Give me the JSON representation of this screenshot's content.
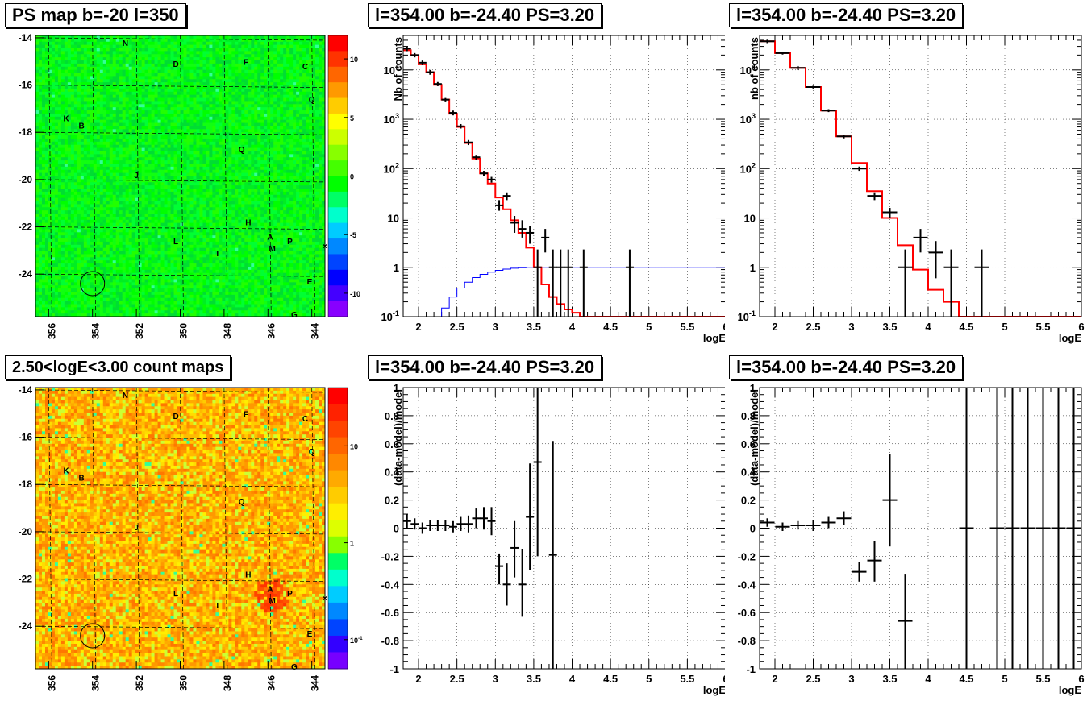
{
  "chart_data": [
    {
      "id": "psmap",
      "type": "heatmap",
      "title": "PS map b=-20 l=350",
      "x_ticks": [
        "356",
        "354",
        "352",
        "350",
        "348",
        "346",
        "344"
      ],
      "x_tick_values": [
        356,
        354,
        352,
        350,
        348,
        346,
        344
      ],
      "xlim": [
        356.6,
        343.4
      ],
      "y_ticks": [
        "-14",
        "-16",
        "-18",
        "-20",
        "-22",
        "-24"
      ],
      "y_tick_values": [
        -14,
        -16,
        -18,
        -20,
        -22,
        -24
      ],
      "ylim": [
        -25.8,
        -13.9
      ],
      "color_scale": {
        "min": -12,
        "max": 12,
        "ticks": [
          "10",
          "5",
          "0",
          "-5",
          "-10"
        ],
        "tick_values": [
          10,
          5,
          0,
          -5,
          -10
        ]
      },
      "sources": [
        {
          "label": "N",
          "l": 352.5,
          "b": -14.2
        },
        {
          "label": "D",
          "l": 350.2,
          "b": -15.1
        },
        {
          "label": "F",
          "l": 347.0,
          "b": -15.0
        },
        {
          "label": "C",
          "l": 344.3,
          "b": -15.2
        },
        {
          "label": "Q",
          "l": 344.0,
          "b": -16.6
        },
        {
          "label": "K",
          "l": 355.2,
          "b": -17.4
        },
        {
          "label": "B",
          "l": 354.5,
          "b": -17.7
        },
        {
          "label": "Q",
          "l": 347.2,
          "b": -18.7
        },
        {
          "label": "J",
          "l": 352.0,
          "b": -19.8
        },
        {
          "label": "H",
          "l": 346.9,
          "b": -21.8
        },
        {
          "label": "A",
          "l": 345.9,
          "b": -22.4
        },
        {
          "label": "P",
          "l": 345.0,
          "b": -22.6
        },
        {
          "label": "M",
          "l": 345.8,
          "b": -22.9
        },
        {
          "label": "L",
          "l": 350.2,
          "b": -22.6
        },
        {
          "label": "I",
          "l": 348.3,
          "b": -23.1
        },
        {
          "label": "E",
          "l": 344.1,
          "b": -24.3
        },
        {
          "label": "G",
          "l": 344.8,
          "b": -25.7
        }
      ],
      "circle": {
        "l": 354.0,
        "b": -24.4
      }
    },
    {
      "id": "spec1",
      "type": "line",
      "title": "l=354.00 b=-24.40 PS=3.20",
      "xlabel": "logE",
      "ylabel": "Nb of counts",
      "xlim": [
        1.8,
        6.0
      ],
      "ylim": [
        0.1,
        50000
      ],
      "yscale": "log",
      "x_ticks": [
        "2",
        "2.5",
        "3",
        "3.5",
        "4",
        "4.5",
        "5",
        "5.5",
        "6"
      ],
      "x_tick_values": [
        2,
        2.5,
        3,
        3.5,
        4,
        4.5,
        5,
        5.5,
        6
      ],
      "y_ticks": [
        "10^-1",
        "1",
        "10",
        "10^2",
        "10^3",
        "10^4"
      ],
      "y_tick_values": [
        0.1,
        1,
        10,
        100,
        1000,
        10000
      ],
      "grid": true,
      "model_step": {
        "edges": [
          1.8,
          1.9,
          2.0,
          2.1,
          2.2,
          2.3,
          2.4,
          2.5,
          2.6,
          2.7,
          2.8,
          2.9,
          3.0,
          3.1,
          3.2,
          3.3,
          3.4,
          3.5,
          3.6,
          3.7,
          3.8,
          3.9,
          4.0,
          4.1,
          4.2,
          4.3,
          4.4,
          6.0
        ],
        "values": [
          25000,
          20000,
          13000,
          9000,
          5000,
          2500,
          1300,
          700,
          330,
          160,
          80,
          50,
          26,
          15,
          9,
          5,
          2.5,
          1.0,
          0.45,
          0.25,
          0.18,
          0.14,
          0.12,
          0.1,
          0.1,
          0.1,
          0.1
        ],
        "color": "#ff0000"
      },
      "efficiency_step": {
        "edges": [
          2.2,
          2.3,
          2.4,
          2.5,
          2.6,
          2.7,
          2.8,
          2.9,
          3.0,
          3.1,
          3.2,
          3.3,
          3.4,
          3.5,
          3.6,
          6.0
        ],
        "values": [
          0.1,
          0.15,
          0.25,
          0.38,
          0.5,
          0.62,
          0.72,
          0.8,
          0.87,
          0.92,
          0.96,
          0.98,
          1.0,
          1.0,
          1.0
        ],
        "color": "#0000ff"
      },
      "points": [
        {
          "x": 1.85,
          "y": 27000,
          "lo": 24000,
          "hi": 30000
        },
        {
          "x": 1.95,
          "y": 20000,
          "lo": 18000,
          "hi": 22000
        },
        {
          "x": 2.05,
          "y": 14000,
          "lo": 12500,
          "hi": 15500
        },
        {
          "x": 2.15,
          "y": 9000,
          "lo": 8000,
          "hi": 10000
        },
        {
          "x": 2.25,
          "y": 5200,
          "lo": 4700,
          "hi": 5700
        },
        {
          "x": 2.35,
          "y": 2500,
          "lo": 2300,
          "hi": 2700
        },
        {
          "x": 2.45,
          "y": 1350,
          "lo": 1200,
          "hi": 1500
        },
        {
          "x": 2.55,
          "y": 720,
          "lo": 650,
          "hi": 800
        },
        {
          "x": 2.65,
          "y": 340,
          "lo": 300,
          "hi": 380
        },
        {
          "x": 2.75,
          "y": 170,
          "lo": 150,
          "hi": 190
        },
        {
          "x": 2.85,
          "y": 80,
          "lo": 70,
          "hi": 90
        },
        {
          "x": 2.95,
          "y": 60,
          "lo": 52,
          "hi": 68
        },
        {
          "x": 3.05,
          "y": 18,
          "lo": 14,
          "hi": 23
        },
        {
          "x": 3.15,
          "y": 28,
          "lo": 23,
          "hi": 33
        },
        {
          "x": 3.25,
          "y": 8,
          "lo": 5,
          "hi": 11
        },
        {
          "x": 3.35,
          "y": 6,
          "lo": 4,
          "hi": 9
        },
        {
          "x": 3.45,
          "y": 5,
          "lo": 3,
          "hi": 7
        },
        {
          "x": 3.55,
          "y": 1,
          "lo": 0.1,
          "hi": 2.3
        },
        {
          "x": 3.65,
          "y": 4,
          "lo": 2,
          "hi": 6
        },
        {
          "x": 3.75,
          "y": 1,
          "lo": 0.1,
          "hi": 2.3
        },
        {
          "x": 3.85,
          "y": 1,
          "lo": 0.1,
          "hi": 2.3
        },
        {
          "x": 3.95,
          "y": 1,
          "lo": 0.1,
          "hi": 2.3
        },
        {
          "x": 4.15,
          "y": 1,
          "lo": 0.1,
          "hi": 2.3
        },
        {
          "x": 4.75,
          "y": 1,
          "lo": 0.1,
          "hi": 2.3
        }
      ]
    },
    {
      "id": "spec2",
      "type": "line",
      "title": "l=354.00 b=-24.40 PS=3.20",
      "xlabel": "logE",
      "ylabel": "nb of counts",
      "xlim": [
        1.8,
        6.0
      ],
      "ylim": [
        0.1,
        50000
      ],
      "yscale": "log",
      "x_ticks": [
        "2",
        "2.5",
        "3",
        "3.5",
        "4",
        "4.5",
        "5",
        "5.5",
        "6"
      ],
      "x_tick_values": [
        2,
        2.5,
        3,
        3.5,
        4,
        4.5,
        5,
        5.5,
        6
      ],
      "y_ticks": [
        "10^-1",
        "1",
        "10",
        "10^2",
        "10^3",
        "10^4"
      ],
      "y_tick_values": [
        0.1,
        1,
        10,
        100,
        1000,
        10000
      ],
      "grid": true,
      "model_step": {
        "edges": [
          1.8,
          2.0,
          2.2,
          2.4,
          2.6,
          2.8,
          3.0,
          3.2,
          3.4,
          3.6,
          3.8,
          4.0,
          4.2,
          4.4,
          6.0
        ],
        "values": [
          38000,
          22000,
          11000,
          4500,
          1500,
          450,
          130,
          35,
          10,
          2.8,
          0.9,
          0.35,
          0.2,
          0.1
        ],
        "color": "#ff0000"
      },
      "points": [
        {
          "x": 1.9,
          "y": 38000,
          "lo": 35000,
          "hi": 41000
        },
        {
          "x": 2.1,
          "y": 22000,
          "lo": 20500,
          "hi": 23500
        },
        {
          "x": 2.3,
          "y": 11000,
          "lo": 10000,
          "hi": 12000
        },
        {
          "x": 2.5,
          "y": 4500,
          "lo": 4200,
          "hi": 4800
        },
        {
          "x": 2.7,
          "y": 1500,
          "lo": 1400,
          "hi": 1600
        },
        {
          "x": 2.9,
          "y": 450,
          "lo": 410,
          "hi": 490
        },
        {
          "x": 3.1,
          "y": 100,
          "lo": 90,
          "hi": 110
        },
        {
          "x": 3.3,
          "y": 28,
          "lo": 23,
          "hi": 33
        },
        {
          "x": 3.5,
          "y": 13,
          "lo": 10,
          "hi": 16
        },
        {
          "x": 3.7,
          "y": 1,
          "lo": 0.1,
          "hi": 2.3
        },
        {
          "x": 3.9,
          "y": 4,
          "lo": 2,
          "hi": 6
        },
        {
          "x": 4.1,
          "y": 2,
          "lo": 0.6,
          "hi": 3.4
        },
        {
          "x": 4.3,
          "y": 1,
          "lo": 0.1,
          "hi": 2.3
        },
        {
          "x": 4.7,
          "y": 1,
          "lo": 0.1,
          "hi": 2.3
        }
      ]
    },
    {
      "id": "countmap",
      "type": "heatmap",
      "title": "2.50<logE<3.00 count maps",
      "x_ticks": [
        "356",
        "354",
        "352",
        "350",
        "348",
        "346",
        "344"
      ],
      "x_tick_values": [
        356,
        354,
        352,
        350,
        348,
        346,
        344
      ],
      "xlim": [
        356.6,
        343.4
      ],
      "y_ticks": [
        "-14",
        "-16",
        "-18",
        "-20",
        "-22",
        "-24"
      ],
      "y_tick_values": [
        -14,
        -16,
        -18,
        -20,
        -22,
        -24
      ],
      "ylim": [
        -25.8,
        -13.9
      ],
      "color_scale": {
        "scale": "log",
        "min": 0.05,
        "max": 40,
        "ticks": [
          "10",
          "1",
          "10^-1"
        ],
        "tick_values": [
          10,
          1,
          0.1
        ]
      },
      "sources": [
        {
          "label": "N",
          "l": 352.5,
          "b": -14.2
        },
        {
          "label": "D",
          "l": 350.2,
          "b": -15.1
        },
        {
          "label": "F",
          "l": 347.0,
          "b": -15.0
        },
        {
          "label": "C",
          "l": 344.3,
          "b": -15.2
        },
        {
          "label": "Q",
          "l": 344.0,
          "b": -16.6
        },
        {
          "label": "K",
          "l": 355.2,
          "b": -17.4
        },
        {
          "label": "B",
          "l": 354.5,
          "b": -17.7
        },
        {
          "label": "Q",
          "l": 347.2,
          "b": -18.7
        },
        {
          "label": "J",
          "l": 352.0,
          "b": -19.8
        },
        {
          "label": "H",
          "l": 346.9,
          "b": -21.8
        },
        {
          "label": "A",
          "l": 345.9,
          "b": -22.4
        },
        {
          "label": "P",
          "l": 345.0,
          "b": -22.6
        },
        {
          "label": "M",
          "l": 345.8,
          "b": -22.9
        },
        {
          "label": "L",
          "l": 350.2,
          "b": -22.6
        },
        {
          "label": "I",
          "l": 348.3,
          "b": -23.1
        },
        {
          "label": "E",
          "l": 344.1,
          "b": -24.3
        },
        {
          "label": "G",
          "l": 344.8,
          "b": -25.7
        }
      ],
      "circle": {
        "l": 354.0,
        "b": -24.4
      }
    },
    {
      "id": "resid1",
      "type": "scatter",
      "title": "l=354.00 b=-24.40 PS=3.20",
      "xlabel": "logE",
      "ylabel": "(data-model)/model",
      "xlim": [
        1.8,
        6.0
      ],
      "ylim": [
        -1,
        1
      ],
      "x_ticks": [
        "2",
        "2.5",
        "3",
        "3.5",
        "4",
        "4.5",
        "5",
        "5.5",
        "6"
      ],
      "x_tick_values": [
        2,
        2.5,
        3,
        3.5,
        4,
        4.5,
        5,
        5.5,
        6
      ],
      "y_ticks": [
        "1",
        "0.8",
        "0.6",
        "0.4",
        "0.2",
        "0",
        "-0.2",
        "-0.4",
        "-0.6",
        "-0.8",
        "-1"
      ],
      "y_tick_values": [
        1,
        0.8,
        0.6,
        0.4,
        0.2,
        0,
        -0.2,
        -0.4,
        -0.6,
        -0.8,
        -1
      ],
      "grid": true,
      "points": [
        {
          "x": 1.85,
          "y": 0.05,
          "lo": 0.0,
          "hi": 0.1
        },
        {
          "x": 1.95,
          "y": 0.03,
          "lo": -0.01,
          "hi": 0.07
        },
        {
          "x": 2.05,
          "y": 0.0,
          "lo": -0.04,
          "hi": 0.04
        },
        {
          "x": 2.15,
          "y": 0.02,
          "lo": -0.02,
          "hi": 0.06
        },
        {
          "x": 2.25,
          "y": 0.02,
          "lo": -0.02,
          "hi": 0.06
        },
        {
          "x": 2.35,
          "y": 0.02,
          "lo": -0.02,
          "hi": 0.06
        },
        {
          "x": 2.45,
          "y": 0.01,
          "lo": -0.03,
          "hi": 0.05
        },
        {
          "x": 2.55,
          "y": 0.03,
          "lo": -0.02,
          "hi": 0.08
        },
        {
          "x": 2.65,
          "y": 0.03,
          "lo": -0.03,
          "hi": 0.09
        },
        {
          "x": 2.75,
          "y": 0.07,
          "lo": 0.0,
          "hi": 0.14
        },
        {
          "x": 2.85,
          "y": 0.07,
          "lo": -0.01,
          "hi": 0.15
        },
        {
          "x": 2.95,
          "y": 0.05,
          "lo": -0.05,
          "hi": 0.15
        },
        {
          "x": 3.05,
          "y": -0.27,
          "lo": -0.4,
          "hi": -0.18
        },
        {
          "x": 3.15,
          "y": -0.4,
          "lo": -0.55,
          "hi": -0.25
        },
        {
          "x": 3.25,
          "y": -0.14,
          "lo": -0.35,
          "hi": 0.05
        },
        {
          "x": 3.35,
          "y": -0.4,
          "lo": -0.63,
          "hi": -0.15
        },
        {
          "x": 3.45,
          "y": 0.08,
          "lo": -0.3,
          "hi": 0.46
        },
        {
          "x": 3.55,
          "y": 0.47,
          "lo": -0.2,
          "hi": 1.0
        },
        {
          "x": 3.75,
          "y": -0.19,
          "lo": -1.0,
          "hi": 0.62
        }
      ]
    },
    {
      "id": "resid2",
      "type": "scatter",
      "title": "l=354.00 b=-24.40 PS=3.20",
      "xlabel": "logE",
      "ylabel": "(data-model)/model",
      "xlim": [
        1.8,
        6.0
      ],
      "ylim": [
        -1,
        1
      ],
      "x_ticks": [
        "2",
        "2.5",
        "3",
        "3.5",
        "4",
        "4.5",
        "5",
        "5.5",
        "6"
      ],
      "x_tick_values": [
        2,
        2.5,
        3,
        3.5,
        4,
        4.5,
        5,
        5.5,
        6
      ],
      "y_ticks": [
        "1",
        "0.8",
        "0.6",
        "0.4",
        "0.2",
        "0",
        "-0.2",
        "-0.4",
        "-0.6",
        "-0.8",
        "-1"
      ],
      "y_tick_values": [
        1,
        0.8,
        0.6,
        0.4,
        0.2,
        0,
        -0.2,
        -0.4,
        -0.6,
        -0.8,
        -1
      ],
      "grid": true,
      "points": [
        {
          "x": 1.9,
          "y": 0.04,
          "lo": 0.01,
          "hi": 0.07
        },
        {
          "x": 2.1,
          "y": 0.01,
          "lo": -0.02,
          "hi": 0.04
        },
        {
          "x": 2.3,
          "y": 0.02,
          "lo": -0.01,
          "hi": 0.05
        },
        {
          "x": 2.5,
          "y": 0.02,
          "lo": -0.02,
          "hi": 0.06
        },
        {
          "x": 2.7,
          "y": 0.04,
          "lo": 0.0,
          "hi": 0.08
        },
        {
          "x": 2.9,
          "y": 0.07,
          "lo": 0.02,
          "hi": 0.12
        },
        {
          "x": 3.1,
          "y": -0.31,
          "lo": -0.38,
          "hi": -0.24
        },
        {
          "x": 3.3,
          "y": -0.23,
          "lo": -0.38,
          "hi": -0.09
        },
        {
          "x": 3.5,
          "y": 0.2,
          "lo": -0.13,
          "hi": 0.53
        },
        {
          "x": 3.7,
          "y": -0.66,
          "lo": -1.0,
          "hi": -0.33
        },
        {
          "x": 4.5,
          "y": 0.0,
          "lo": -1.0,
          "hi": 1.0
        },
        {
          "x": 4.9,
          "y": 0.0,
          "lo": -1.0,
          "hi": 1.0
        },
        {
          "x": 5.1,
          "y": 0.0,
          "lo": -1.0,
          "hi": 1.0
        },
        {
          "x": 5.3,
          "y": 0.0,
          "lo": -1.0,
          "hi": 1.0
        },
        {
          "x": 5.5,
          "y": 0.0,
          "lo": -1.0,
          "hi": 1.0
        },
        {
          "x": 5.7,
          "y": 0.0,
          "lo": -1.0,
          "hi": 1.0
        },
        {
          "x": 5.9,
          "y": 0.0,
          "lo": -1.0,
          "hi": 1.0
        }
      ]
    }
  ]
}
